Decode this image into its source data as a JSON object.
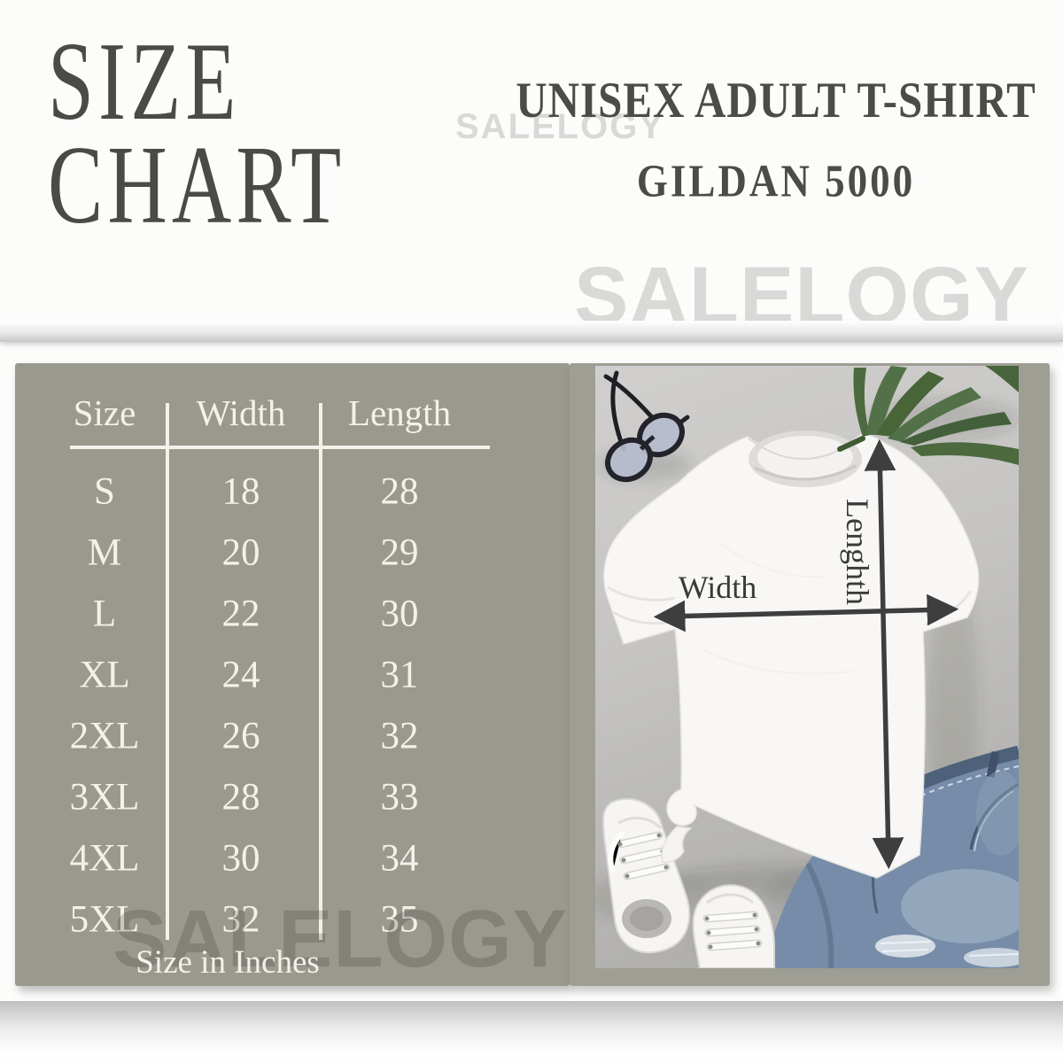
{
  "title": {
    "line1": "SIZE",
    "line2": "CHART"
  },
  "product": {
    "line1": "UNISEX ADULT T-SHIRT",
    "line2": "GILDAN 5000"
  },
  "watermarks": {
    "top": "SALELOGY",
    "middle": "SALELOGY",
    "bottom": "SALELOGY"
  },
  "photo": {
    "width_label": "Width",
    "length_label": "Lenghth"
  },
  "chart_data": {
    "type": "table",
    "title": "SIZE CHART",
    "columns": [
      "Size",
      "Width",
      "Length"
    ],
    "rows": [
      [
        "S",
        "18",
        "28"
      ],
      [
        "M",
        "20",
        "29"
      ],
      [
        "L",
        "22",
        "30"
      ],
      [
        "XL",
        "24",
        "31"
      ],
      [
        "2XL",
        "26",
        "32"
      ],
      [
        "3XL",
        "28",
        "33"
      ],
      [
        "4XL",
        "30",
        "34"
      ],
      [
        "5XL",
        "32",
        "35"
      ]
    ],
    "footer_note": "Size in Inches"
  },
  "colors": {
    "heading_text": "#4b4a45",
    "panel_background": "#9a998e",
    "table_text": "#f2f1eb",
    "watermark": "#d9d9d8",
    "arrow": "#3e3e3e",
    "leaf_green": "#4c6a3e",
    "denim_blue": "#768ca8"
  }
}
